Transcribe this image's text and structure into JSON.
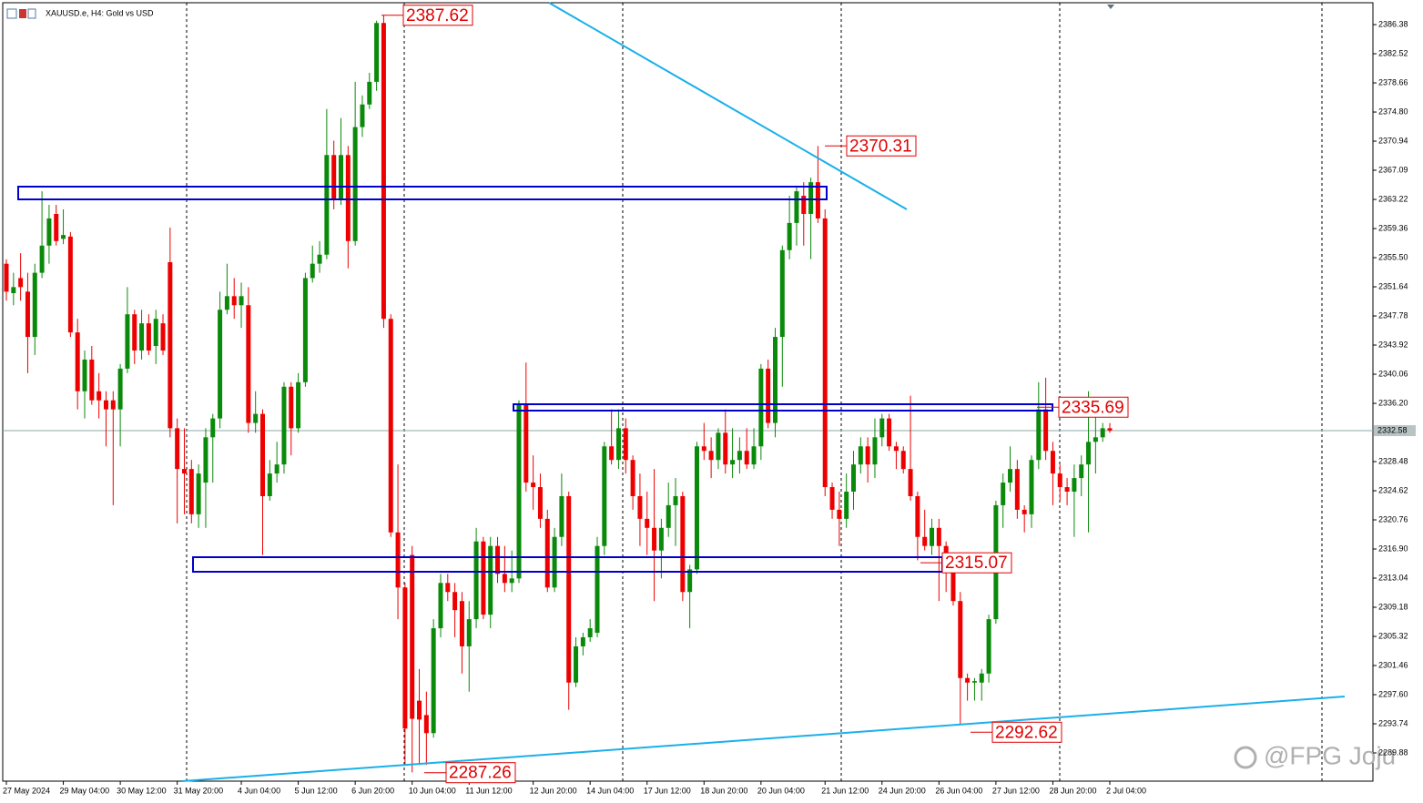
{
  "chart_data": {
    "type": "candlestick",
    "title": "XAUUSD.e, H4:  Gold vs USD",
    "up_color": "#0a8a0a",
    "down_color": "#ee0000",
    "open": [
      2354.7,
      2350.8,
      2352.8,
      2351.0,
      2345.0,
      2353.5,
      2357.1,
      2361.3,
      2358.0,
      2358.3,
      2345.6,
      2337.8,
      2342.0,
      2337.8,
      2336.6,
      2336.6,
      2335.4,
      2340.8,
      2348.0,
      2343.2,
      2346.8,
      2343.8,
      2346.8,
      2354.9,
      2332.9,
      2327.5,
      2327.5,
      2321.5,
      2325.7,
      2331.7,
      2334.2,
      2348.6,
      2350.4,
      2349.2,
      2349.2,
      2333.6,
      2334.8,
      2323.9,
      2326.9,
      2328.1,
      2338.4,
      2332.9,
      2339.0,
      2352.8,
      2354.7,
      2355.9,
      2369.1,
      2363.1,
      2369.1,
      2357.7,
      2372.8,
      2375.8,
      2378.8,
      2386.6,
      2347.4,
      2319.1,
      2311.8,
      2316.1,
      2296.8,
      2294.9,
      2292.5,
      2306.4,
      2312.4,
      2311.2,
      2310.0,
      2304.0,
      2307.6,
      2317.9,
      2308.2,
      2317.3,
      2313.6,
      2312.4,
      2313.0,
      2336.0,
      2325.7,
      2325.1,
      2320.9,
      2311.8,
      2318.5,
      2323.9,
      2299.2,
      2304.0,
      2305.2,
      2305.8,
      2317.3,
      2330.5,
      2328.7,
      2332.9,
      2328.7,
      2323.9,
      2320.9,
      2319.7,
      2316.7,
      2319.7,
      2322.7,
      2323.9,
      2311.2,
      2314.2,
      2330.5,
      2329.9,
      2328.7,
      2332.3,
      2328.1,
      2328.7,
      2329.9,
      2328.1,
      2330.5,
      2340.8,
      2333.6,
      2345.0,
      2356.5,
      2360.1,
      2363.7,
      2361.3,
      2365.5,
      2360.7,
      2325.1,
      2322.1,
      2320.9,
      2324.5,
      2328.1,
      2330.5,
      2328.1,
      2331.7,
      2334.2,
      2330.5,
      2329.9,
      2327.5,
      2323.9,
      2318.5,
      2317.3,
      2319.7,
      2317.3,
      2314.8,
      2310.0,
      2299.8,
      2299.2,
      2299.2,
      2300.4,
      2307.6,
      2322.7,
      2325.7,
      2327.5,
      2322.1,
      2321.5,
      2328.7,
      2335.4,
      2329.9,
      2326.9,
      2325.1,
      2324.5,
      2326.3,
      2328.1,
      2331.1,
      2331.7,
      2332.9
    ],
    "high": [
      2355.3,
      2353.5,
      2356.1,
      2353.5,
      2354.7,
      2364.3,
      2362.5,
      2362.5,
      2361.9,
      2358.9,
      2347.4,
      2343.2,
      2343.8,
      2340.2,
      2337.8,
      2337.8,
      2341.4,
      2351.6,
      2348.6,
      2348.6,
      2348.0,
      2348.6,
      2348.0,
      2359.5,
      2334.2,
      2332.9,
      2328.7,
      2328.1,
      2332.9,
      2334.8,
      2351.0,
      2354.7,
      2352.8,
      2352.2,
      2351.6,
      2337.8,
      2335.4,
      2328.7,
      2331.1,
      2339.0,
      2339.0,
      2340.2,
      2353.5,
      2357.1,
      2357.7,
      2375.2,
      2371.0,
      2374.0,
      2370.3,
      2378.8,
      2377.0,
      2380.0,
      2386.9,
      2387.6,
      2348.0,
      2328.1,
      2312.4,
      2317.3,
      2301.0,
      2298.0,
      2307.6,
      2313.6,
      2313.6,
      2312.4,
      2311.2,
      2310.0,
      2319.7,
      2318.5,
      2318.5,
      2318.5,
      2317.3,
      2316.7,
      2336.6,
      2341.6,
      2329.3,
      2326.9,
      2322.1,
      2319.7,
      2326.9,
      2324.5,
      2305.2,
      2305.8,
      2307.6,
      2318.5,
      2331.1,
      2335.4,
      2335.4,
      2334.2,
      2329.3,
      2326.9,
      2324.5,
      2327.5,
      2320.9,
      2325.7,
      2326.3,
      2324.5,
      2314.8,
      2331.1,
      2333.6,
      2331.7,
      2332.9,
      2335.4,
      2332.9,
      2331.7,
      2332.9,
      2332.9,
      2341.4,
      2342.0,
      2346.2,
      2357.1,
      2363.7,
      2364.9,
      2365.5,
      2366.1,
      2370.3,
      2361.9,
      2325.7,
      2324.5,
      2326.9,
      2329.9,
      2331.7,
      2331.7,
      2334.2,
      2334.8,
      2334.8,
      2331.1,
      2330.5,
      2337.2,
      2324.5,
      2322.1,
      2320.9,
      2320.9,
      2317.9,
      2316.1,
      2311.2,
      2300.4,
      2299.8,
      2301.0,
      2308.2,
      2323.3,
      2326.9,
      2330.5,
      2328.7,
      2322.7,
      2329.3,
      2339.0,
      2339.6,
      2331.1,
      2328.1,
      2326.3,
      2328.1,
      2329.3,
      2337.8,
      2335.4,
      2333.6,
      2333.6
    ],
    "low": [
      2349.8,
      2349.2,
      2349.8,
      2340.2,
      2342.6,
      2352.8,
      2354.7,
      2357.1,
      2357.3,
      2345.0,
      2335.4,
      2334.2,
      2336.0,
      2334.2,
      2330.5,
      2322.7,
      2330.5,
      2340.2,
      2341.4,
      2342.0,
      2342.6,
      2341.4,
      2342.6,
      2331.7,
      2320.3,
      2321.5,
      2320.3,
      2319.7,
      2319.7,
      2325.7,
      2332.9,
      2348.0,
      2347.4,
      2346.2,
      2332.3,
      2332.3,
      2316.1,
      2323.3,
      2325.7,
      2326.9,
      2329.3,
      2332.3,
      2338.4,
      2352.2,
      2353.5,
      2355.3,
      2361.9,
      2362.5,
      2354.1,
      2357.1,
      2371.5,
      2375.2,
      2377.6,
      2346.2,
      2318.5,
      2307.6,
      2288.3,
      2287.3,
      2288.3,
      2288.3,
      2291.9,
      2305.2,
      2310.0,
      2305.2,
      2300.4,
      2298.0,
      2306.4,
      2307.6,
      2306.4,
      2312.4,
      2311.2,
      2311.2,
      2312.4,
      2324.5,
      2322.1,
      2319.7,
      2311.2,
      2311.2,
      2317.3,
      2295.6,
      2298.6,
      2302.8,
      2304.6,
      2305.2,
      2316.1,
      2328.1,
      2327.5,
      2326.9,
      2322.1,
      2317.3,
      2316.1,
      2310.0,
      2313.0,
      2318.5,
      2317.3,
      2310.0,
      2306.4,
      2313.6,
      2328.7,
      2326.3,
      2327.5,
      2326.9,
      2326.3,
      2326.9,
      2327.5,
      2327.5,
      2328.7,
      2332.9,
      2331.7,
      2338.4,
      2355.3,
      2357.1,
      2357.1,
      2355.3,
      2360.1,
      2323.9,
      2320.9,
      2317.3,
      2319.7,
      2322.1,
      2326.9,
      2325.7,
      2326.3,
      2330.5,
      2329.9,
      2327.5,
      2326.9,
      2323.3,
      2315.4,
      2316.7,
      2316.1,
      2310.0,
      2311.2,
      2309.4,
      2293.7,
      2296.8,
      2296.8,
      2296.8,
      2299.2,
      2307.0,
      2319.7,
      2324.5,
      2320.9,
      2319.1,
      2319.7,
      2327.5,
      2328.7,
      2322.7,
      2323.3,
      2322.7,
      2318.5,
      2323.9,
      2319.1,
      2326.9,
      2331.1,
      2332.3
    ],
    "close": [
      2351.0,
      2351.6,
      2351.6,
      2345.0,
      2353.5,
      2357.1,
      2360.7,
      2357.7,
      2358.5,
      2345.6,
      2337.8,
      2342.0,
      2336.6,
      2336.6,
      2335.4,
      2335.4,
      2340.8,
      2348.0,
      2343.2,
      2346.8,
      2343.2,
      2347.4,
      2343.2,
      2332.9,
      2327.5,
      2326.9,
      2321.5,
      2326.9,
      2331.7,
      2334.2,
      2348.6,
      2350.4,
      2349.2,
      2350.4,
      2333.6,
      2334.8,
      2323.9,
      2326.9,
      2328.1,
      2338.4,
      2332.9,
      2339.0,
      2352.8,
      2354.7,
      2355.9,
      2369.1,
      2363.1,
      2369.1,
      2357.7,
      2372.8,
      2375.8,
      2378.8,
      2386.6,
      2347.4,
      2319.1,
      2311.8,
      2293.1,
      2294.4,
      2294.3,
      2292.5,
      2306.4,
      2312.4,
      2311.2,
      2308.8,
      2304.0,
      2307.6,
      2317.9,
      2308.2,
      2317.3,
      2313.6,
      2312.4,
      2313.0,
      2336.0,
      2325.7,
      2325.1,
      2320.9,
      2311.8,
      2318.5,
      2323.9,
      2299.2,
      2304.0,
      2305.2,
      2306.4,
      2317.3,
      2330.5,
      2328.7,
      2332.9,
      2328.7,
      2323.9,
      2320.9,
      2319.7,
      2316.7,
      2319.7,
      2322.7,
      2323.9,
      2311.2,
      2314.2,
      2330.5,
      2329.9,
      2328.7,
      2332.3,
      2328.1,
      2328.7,
      2329.9,
      2328.1,
      2330.5,
      2340.8,
      2333.6,
      2345.0,
      2356.5,
      2360.1,
      2364.3,
      2361.3,
      2365.5,
      2360.7,
      2325.1,
      2322.1,
      2320.9,
      2324.5,
      2328.1,
      2330.5,
      2328.1,
      2331.7,
      2334.2,
      2330.5,
      2329.9,
      2327.5,
      2323.9,
      2318.5,
      2317.3,
      2319.7,
      2317.3,
      2314.8,
      2310.0,
      2299.8,
      2299.2,
      2299.4,
      2300.4,
      2307.6,
      2322.7,
      2325.7,
      2327.5,
      2322.1,
      2321.5,
      2328.7,
      2335.4,
      2329.9,
      2326.9,
      2325.1,
      2324.5,
      2326.3,
      2328.1,
      2331.1,
      2331.7,
      2332.9,
      2332.6
    ],
    "xticks": [
      {
        "value": 0,
        "label": "27 May 2024"
      },
      {
        "value": 8,
        "label": "29 May 04:00"
      },
      {
        "value": 16,
        "label": "30 May 12:00"
      },
      {
        "value": 24,
        "label": "31 May 20:00"
      },
      {
        "value": 33,
        "label": "4 Jun 04:00"
      },
      {
        "value": 41,
        "label": "5 Jun 12:00"
      },
      {
        "value": 49,
        "label": "6 Jun 20:00"
      },
      {
        "value": 57,
        "label": "10 Jun 04:00"
      },
      {
        "value": 65,
        "label": "11 Jun 12:00"
      },
      {
        "value": 74,
        "label": "12 Jun 20:00"
      },
      {
        "value": 82,
        "label": "14 Jun 04:00"
      },
      {
        "value": 90,
        "label": "17 Jun 12:00"
      },
      {
        "value": 98,
        "label": "18 Jun 20:00"
      },
      {
        "value": 106,
        "label": "20 Jun 04:00"
      },
      {
        "value": 115,
        "label": "21 Jun 12:00"
      },
      {
        "value": 123,
        "label": "24 Jun 20:00"
      },
      {
        "value": 131,
        "label": "26 Jun 04:00"
      },
      {
        "value": 139,
        "label": "27 Jun 12:00"
      },
      {
        "value": 147,
        "label": "28 Jun 20:00"
      },
      {
        "value": 155,
        "label": "2 Jul 04:00"
      }
    ],
    "ylim": [
      2286.14,
      2389.04
    ],
    "yticks": [
      {
        "value": 2386.38,
        "label": "2386.38"
      },
      {
        "value": 2382.52,
        "label": "2382.52"
      },
      {
        "value": 2378.66,
        "label": "2378.66"
      },
      {
        "value": 2374.8,
        "label": "2374.80"
      },
      {
        "value": 2370.94,
        "label": "2370.94"
      },
      {
        "value": 2367.09,
        "label": "2367.09"
      },
      {
        "value": 2363.22,
        "label": "2363.22"
      },
      {
        "value": 2359.36,
        "label": "2359.36"
      },
      {
        "value": 2355.5,
        "label": "2355.50"
      },
      {
        "value": 2351.64,
        "label": "2351.64"
      },
      {
        "value": 2347.78,
        "label": "2347.78"
      },
      {
        "value": 2343.92,
        "label": "2343.92"
      },
      {
        "value": 2340.06,
        "label": "2340.06"
      },
      {
        "value": 2336.2,
        "label": "2336.20"
      },
      {
        "value": 2328.48,
        "label": "2328.48"
      },
      {
        "value": 2324.62,
        "label": "2324.62"
      },
      {
        "value": 2320.76,
        "label": "2320.76"
      },
      {
        "value": 2316.9,
        "label": "2316.90"
      },
      {
        "value": 2313.04,
        "label": "2313.04"
      },
      {
        "value": 2309.18,
        "label": "2309.18"
      },
      {
        "value": 2305.32,
        "label": "2305.32"
      },
      {
        "value": 2301.46,
        "label": "2301.46"
      },
      {
        "value": 2297.6,
        "label": "2297.60"
      },
      {
        "value": 2293.74,
        "label": "2293.74"
      },
      {
        "value": 2289.88,
        "label": "2289.88"
      }
    ],
    "current_price": 2332.58,
    "price_labels": [
      2387.62,
      2370.31,
      2335.69,
      2315.07,
      2292.62,
      2287.26
    ],
    "watermark": "@FPG Joju"
  }
}
